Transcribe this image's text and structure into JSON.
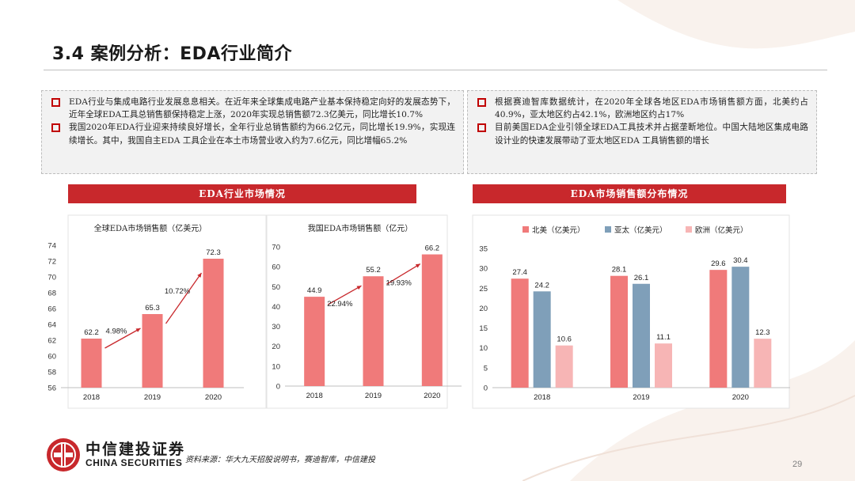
{
  "title": "3.4 案例分析：EDA行业简介",
  "left_panel": {
    "bullets": [
      "EDA行业与集成电路行业发展息息相关。在近年来全球集成电路产业基本保持稳定向好的发展态势下，近年全球EDA工具总销售额保持稳定上涨，2020年实现总销售额72.3亿美元，同比增长10.7%",
      "我国2020年EDA行业迎来持续良好增长，全年行业总销售额约为66.2亿元，同比增长19.9%，实现连续增长。其中，我国自主EDA 工具企业在本土市场营业收入约为7.6亿元，同比增幅65.2%"
    ]
  },
  "right_panel": {
    "bullets": [
      "根据赛迪智库数据统计，在2020年全球各地区EDA市场销售额方面，北美约占40.9%，亚太地区约占42.1%，欧洲地区约占17%",
      "目前美国EDA企业引领全球EDA工具技术并占据垄断地位。中国大陆地区集成电路设计业的快速发展带动了亚太地区EDA 工具销售额的增长"
    ]
  },
  "banners": {
    "left": "EDA行业市场情况",
    "right": "EDA市场销售额分布情况"
  },
  "colors": {
    "accent_red": "#c8282c",
    "bar_salmon": "#f07a7a",
    "bar_blue": "#7f9fb9",
    "bar_pink": "#f7b5b5"
  },
  "chart_data": [
    {
      "type": "bar",
      "title": "全球EDA市场销售额（亿美元）",
      "categories": [
        "2018",
        "2019",
        "2020"
      ],
      "values": [
        62.2,
        65.3,
        72.3
      ],
      "value_labels": [
        "62.2",
        "65.3",
        "72.3"
      ],
      "growth_labels": [
        "4.98%",
        "10.72%"
      ],
      "yticks": [
        "56",
        "58",
        "60",
        "62",
        "64",
        "66",
        "68",
        "70",
        "72",
        "74"
      ],
      "ylim": [
        56,
        74
      ],
      "grid": false
    },
    {
      "type": "bar",
      "title": "我国EDA市场销售额（亿元）",
      "categories": [
        "2018",
        "2019",
        "2020"
      ],
      "values": [
        44.9,
        55.2,
        66.2
      ],
      "value_labels": [
        "44.9",
        "55.2",
        "66.2"
      ],
      "growth_labels": [
        "22.94%",
        "19.93%"
      ],
      "yticks": [
        "0",
        "10",
        "20",
        "30",
        "40",
        "50",
        "60",
        "70"
      ],
      "ylim": [
        0,
        70
      ],
      "grid": false
    },
    {
      "type": "bar",
      "title": "",
      "categories": [
        "2018",
        "2019",
        "2020"
      ],
      "yticks": [
        "0",
        "5",
        "10",
        "15",
        "20",
        "25",
        "30",
        "35"
      ],
      "ylim": [
        0,
        35
      ],
      "legend": "top",
      "grid": false,
      "series": [
        {
          "name": "北美（亿美元）",
          "values": [
            27.4,
            28.1,
            29.6
          ],
          "labels": [
            "27.4",
            "28.1",
            "29.6"
          ]
        },
        {
          "name": "亚太（亿美元）",
          "values": [
            24.2,
            26.1,
            30.4
          ],
          "labels": [
            "24.2",
            "26.1",
            "30.4"
          ]
        },
        {
          "name": "欧洲（亿美元）",
          "values": [
            10.6,
            11.1,
            12.3
          ],
          "labels": [
            "10.6",
            "11.1",
            "12.3"
          ]
        }
      ]
    }
  ],
  "footer": {
    "logo_cn": "中信建投证券",
    "logo_en": "CHINA SECURITIES",
    "source": "资料来源：华大九天招股说明书，赛迪智库，中信建投",
    "page": "29"
  }
}
